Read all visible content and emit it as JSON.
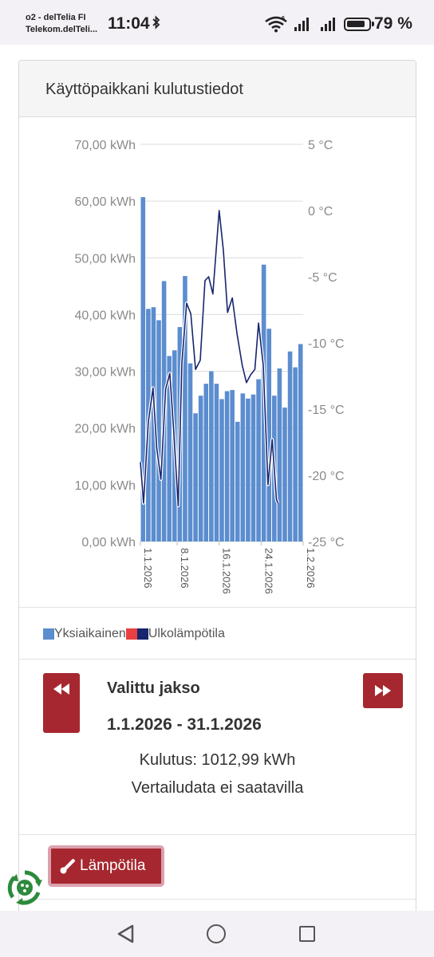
{
  "status_bar": {
    "carrier_line1": "o2 - delTelia FI",
    "carrier_line2": "Telekom.delTeli...",
    "time": "11:04",
    "battery": "79 %",
    "icons": [
      "bluetooth-icon",
      "wifi-icon",
      "signal-icon",
      "battery-icon"
    ]
  },
  "card": {
    "title": "Käyttöpaikkani kulutustiedot"
  },
  "chart_data": {
    "type": "bar",
    "title": "",
    "xlabel": "",
    "ylabel": "",
    "ylim": [
      0,
      70
    ],
    "y2lim": [
      -25,
      5
    ],
    "y_ticks": [
      "0,00 kWh",
      "10,00 kWh",
      "20,00 kWh",
      "30,00 kWh",
      "40,00 kWh",
      "50,00 kWh",
      "60,00 kWh",
      "70,00 kWh"
    ],
    "y2_ticks": [
      "-25 °C",
      "-20 °C",
      "-15 °C",
      "-10 °C",
      "-5 °C",
      "0 °C",
      "5 °C"
    ],
    "x_tick_labels": [
      {
        "day": 1,
        "label": "1.1.2026"
      },
      {
        "day": 8,
        "label": "8.1.2026"
      },
      {
        "day": 16,
        "label": "16.1.2026"
      },
      {
        "day": 24,
        "label": "24.1.2026"
      },
      {
        "day": 32,
        "label": "1.2.2026"
      }
    ],
    "grid": true,
    "legend_position": "bottom-left",
    "colors": {
      "consumption": "#5b8dcf",
      "temperature": "#17256e",
      "temperature_alt": "#e84040"
    },
    "series": [
      {
        "name": "Yksiaikainen",
        "kind": "bar",
        "axis": "left",
        "values": [
          60.7,
          41.0,
          41.3,
          39.0,
          45.9,
          32.7,
          33.7,
          37.8,
          46.8,
          31.4,
          22.6,
          25.7,
          27.8,
          30.0,
          27.8,
          25.1,
          26.5,
          26.7,
          21.1,
          26.1,
          25.2,
          25.9,
          28.6,
          48.8,
          37.5,
          25.7,
          30.5,
          23.6,
          33.5,
          30.7,
          34.8
        ]
      },
      {
        "name": "Ulkolämpötila",
        "kind": "line",
        "axis": "right",
        "points": [
          {
            "x": 1.0,
            "y": -19.0
          },
          {
            "x": 1.6,
            "y": -22.1
          },
          {
            "x": 2.5,
            "y": -16.0
          },
          {
            "x": 3.4,
            "y": -13.4
          },
          {
            "x": 4.1,
            "y": -17.9
          },
          {
            "x": 4.9,
            "y": -20.3
          },
          {
            "x": 5.8,
            "y": -13.5
          },
          {
            "x": 6.6,
            "y": -12.3
          },
          {
            "x": 7.3,
            "y": -16.4
          },
          {
            "x": 8.2,
            "y": -22.3
          },
          {
            "x": 8.9,
            "y": -11.5
          },
          {
            "x": 9.8,
            "y": -7.0
          },
          {
            "x": 10.6,
            "y": -7.8
          },
          {
            "x": 11.5,
            "y": -12.0
          },
          {
            "x": 12.4,
            "y": -11.3
          },
          {
            "x": 13.3,
            "y": -5.3
          },
          {
            "x": 14.0,
            "y": -5.0
          },
          {
            "x": 14.8,
            "y": -6.3
          },
          {
            "x": 16.0,
            "y": 0.0
          },
          {
            "x": 16.8,
            "y": -3.0
          },
          {
            "x": 17.6,
            "y": -7.7
          },
          {
            "x": 18.5,
            "y": -6.6
          },
          {
            "x": 19.4,
            "y": -9.3
          },
          {
            "x": 20.4,
            "y": -11.7
          },
          {
            "x": 21.2,
            "y": -13.0
          },
          {
            "x": 22.0,
            "y": -12.4
          },
          {
            "x": 22.8,
            "y": -12.0
          },
          {
            "x": 23.5,
            "y": -8.5
          },
          {
            "x": 24.4,
            "y": -11.7
          },
          {
            "x": 25.3,
            "y": -20.7
          },
          {
            "x": 26.1,
            "y": -17.3
          },
          {
            "x": 26.9,
            "y": -21.8
          },
          {
            "x": 27.2,
            "y": -22.1
          }
        ]
      }
    ]
  },
  "legend": {
    "series1": "Yksiaikainen",
    "series2": "Ulkolämpötila"
  },
  "period": {
    "prev_icon": "rewind-icon",
    "next_icon": "fast-forward-icon",
    "label": "Valittu jakso",
    "range": "1.1.2026 - 31.1.2026",
    "consumption": "Kulutus: 1012,99 kWh",
    "comparison": "Vertailudata ei saatavilla"
  },
  "temperature_button": {
    "label": "Lämpötila",
    "icon": "thermometer-icon"
  },
  "floating_icon": "recycle-icon",
  "nav": {
    "back_icon": "back-triangle-icon",
    "home_icon": "home-circle-icon",
    "recent_icon": "recent-square-icon"
  }
}
